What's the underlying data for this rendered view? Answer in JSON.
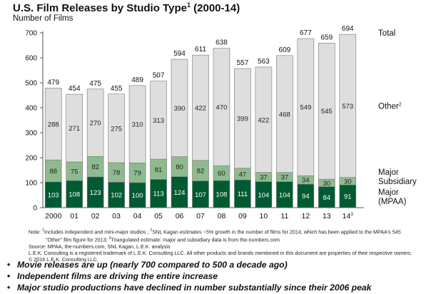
{
  "chart_data": {
    "type": "bar",
    "stacked": true,
    "title": "U.S. Film Releases by Studio Type",
    "title_sup": "1",
    "title_suffix": "(2000-14)",
    "ylabel": "Number of Films",
    "ylim": [
      0,
      700
    ],
    "yticks": [
      "0",
      "100",
      "200",
      "300",
      "400",
      "500",
      "600",
      "700"
    ],
    "categories": [
      "2000",
      "01",
      "02",
      "03",
      "04",
      "05",
      "06",
      "07",
      "08",
      "09",
      "10",
      "11",
      "12",
      "13",
      "14"
    ],
    "category_sup": {
      "14": "3"
    },
    "series": [
      {
        "name": "Major (MPAA)",
        "color": "#005a32",
        "values": [
          103,
          108,
          123,
          102,
          100,
          113,
          124,
          107,
          108,
          111,
          104,
          104,
          94,
          84,
          91
        ]
      },
      {
        "name": "Major Subsidiary",
        "color": "#8fba8f",
        "values": [
          88,
          75,
          82,
          78,
          79,
          81,
          80,
          82,
          60,
          47,
          37,
          37,
          34,
          30,
          30
        ]
      },
      {
        "name": "Other",
        "name_sup": "2",
        "color": "#dedede",
        "values": [
          288,
          271,
          270,
          275,
          310,
          313,
          390,
          422,
          470,
          399,
          422,
          468,
          549,
          545,
          573
        ]
      }
    ],
    "totals": [
      479,
      454,
      475,
      455,
      489,
      507,
      594,
      611,
      638,
      557,
      563,
      609,
      677,
      659,
      694
    ],
    "legend": {
      "total": "Total",
      "other": "Other",
      "other_sup": "2",
      "subsidiary_lines": [
        "Major",
        "Subsidiary"
      ],
      "major_lines": [
        "Major",
        "(MPAA)"
      ]
    }
  },
  "notes": {
    "line1_a": "Note: ",
    "sup1": "1",
    "line1_b": "Includes independent and mini-major studios ; ",
    "sup2": "2",
    "line1_c": "SNL Kagan estimates ~5% growth in the number of films for 2014, which has been applied to the MPAA's 545",
    "line2_a": "\"Other\" film figure for 2013; ",
    "sup3": "3",
    "line2_b": "Triangulated estimate: major and subsidiary data is from the-numbers.com",
    "source": "Source: MPAA, the-numbers.com, SNL Kagan, L.E.K. analysis",
    "trademark": "L.E.K. Consulting is a registered trademark of L.E.K. Consulting LLC. All other products and brands mentioned in this document are properties of their respective owners.",
    "copyright": "© 2016 L.E.K. Consulting LLC."
  },
  "bullets": [
    "Movie releases are up (nearly 700 compared to 500 a decade ago)",
    "Independent films are driving the entire increase",
    "Major studio productions have declined in number substantially since their 2006 peak"
  ],
  "bullet_symbol": "•"
}
